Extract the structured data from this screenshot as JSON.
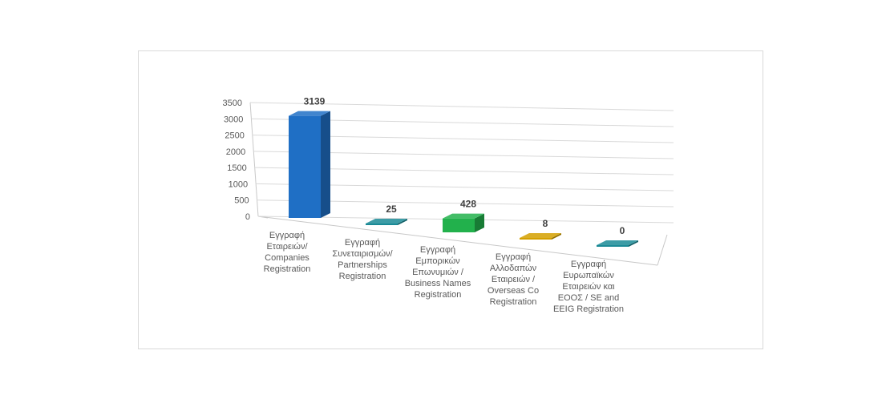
{
  "chart_data": {
    "type": "bar",
    "categories": [
      [
        "Εγγραφή",
        "Εταιρειών/",
        "Companies",
        "Registration"
      ],
      [
        "Εγγραφή",
        "Συνεταιρισμών/",
        "Partnerships",
        "Registration"
      ],
      [
        "Εγγραφή",
        "Εμπορικών",
        "Επωνυμιών /",
        "Business Names",
        "Registration"
      ],
      [
        "Εγγραφή",
        "Αλλοδαπών",
        "Εταιρειών /",
        "Overseas Co",
        "Registration"
      ],
      [
        "Εγγραφή",
        "Ευρωπαϊκών",
        "Εταιρειών και",
        "ΕΟΟΣ / SE and",
        "EEIG Registration"
      ]
    ],
    "values": [
      3139,
      25,
      428,
      8,
      0
    ],
    "data_labels": [
      "3139",
      "25",
      "428",
      "8",
      "0"
    ],
    "colors": [
      "#1f6fc5",
      "#1b8a96",
      "#22b14c",
      "#d4a000",
      "#1b8a96"
    ],
    "yticks": [
      "0",
      "500",
      "1000",
      "1500",
      "2000",
      "2500",
      "3000",
      "3500"
    ],
    "ylim": [
      0,
      3500
    ],
    "title": "",
    "xlabel": "",
    "ylabel": "",
    "grid": true,
    "style": "3d-column"
  }
}
